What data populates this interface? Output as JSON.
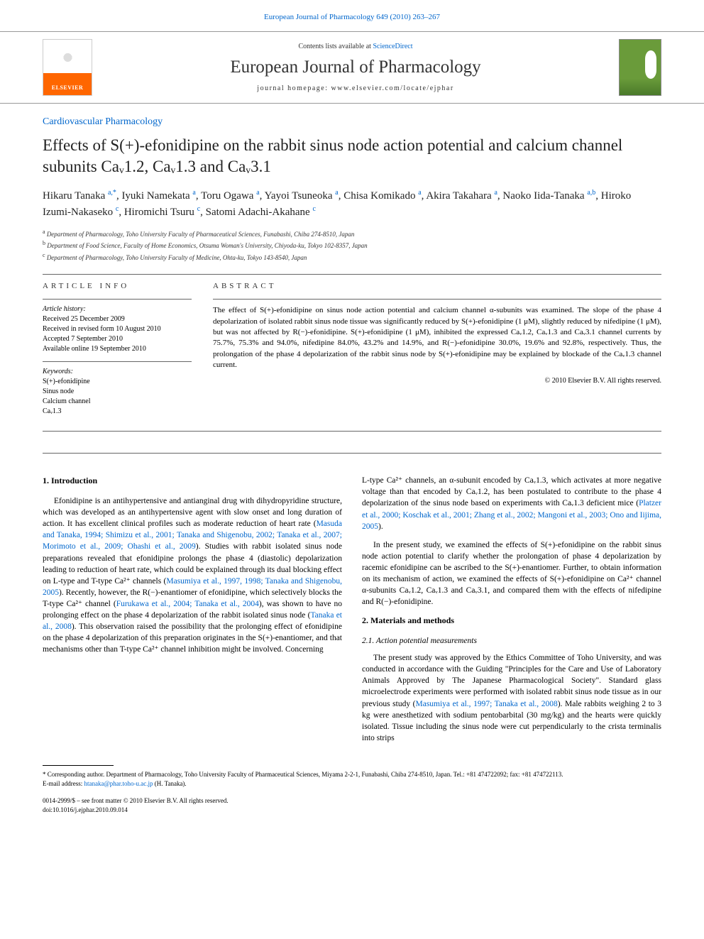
{
  "header": {
    "top_link": "European Journal of Pharmacology 649 (2010) 263–267",
    "contents_prefix": "Contents lists available at ",
    "contents_link": "ScienceDirect",
    "journal_name": "European Journal of Pharmacology",
    "homepage_prefix": "journal homepage: ",
    "homepage_url": "www.elsevier.com/locate/ejphar",
    "elsevier_label": "ELSEVIER"
  },
  "article": {
    "section_label": "Cardiovascular Pharmacology",
    "title": "Effects of S(+)-efonidipine on the rabbit sinus node action potential and calcium channel subunits Caᵥ1.2, Caᵥ1.3 and Caᵥ3.1",
    "authors_html": "Hikaru Tanaka <sup>a,*</sup>, Iyuki Namekata <sup>a</sup>, Toru Ogawa <sup>a</sup>, Yayoi Tsuneoka <sup>a</sup>, Chisa Komikado <sup>a</sup>, Akira Takahara <sup>a</sup>, Naoko Iida-Tanaka <sup>a,b</sup>, Hiroko Izumi-Nakaseko <sup>c</sup>, Hiromichi Tsuru <sup>c</sup>, Satomi Adachi-Akahane <sup>c</sup>",
    "affiliations": [
      "Department of Pharmacology, Toho University Faculty of Pharmaceutical Sciences, Funabashi, Chiba 274-8510, Japan",
      "Department of Food Science, Faculty of Home Economics, Otsuma Woman's University, Chiyoda-ku, Tokyo 102-8357, Japan",
      "Department of Pharmacology, Toho University Faculty of Medicine, Ohta-ku, Tokyo 143-8540, Japan"
    ],
    "aff_markers": [
      "a",
      "b",
      "c"
    ]
  },
  "info": {
    "heading": "ARTICLE INFO",
    "history_label": "Article history:",
    "history": [
      "Received 25 December 2009",
      "Received in revised form 10 August 2010",
      "Accepted 7 September 2010",
      "Available online 19 September 2010"
    ],
    "keywords_label": "Keywords:",
    "keywords": [
      "S(+)-efonidipine",
      "Sinus node",
      "Calcium channel",
      "Caᵥ1.3"
    ]
  },
  "abstract": {
    "heading": "ABSTRACT",
    "text": "The effect of S(+)-efonidipine on sinus node action potential and calcium channel α-subunits was examined. The slope of the phase 4 depolarization of isolated rabbit sinus node tissue was significantly reduced by S(+)-efonidipine (1 μM), slightly reduced by nifedipine (1 μM), but was not affected by R(−)-efonidipine. S(+)-efonidipine (1 μM), inhibited the expressed Caᵥ1.2, Caᵥ1.3 and Caᵥ3.1 channel currents by 75.7%, 75.3% and 94.0%, nifedipine 84.0%, 43.2% and 14.9%, and R(−)-efonidipine 30.0%, 19.6% and 92.8%, respectively. Thus, the prolongation of the phase 4 depolarization of the rabbit sinus node by S(+)-efonidipine may be explained by blockade of the Caᵥ1.3 channel current.",
    "copyright": "© 2010 Elsevier B.V. All rights reserved."
  },
  "body": {
    "intro_heading": "1. Introduction",
    "intro_p1_a": "Efonidipine is an antihypertensive and antianginal drug with dihydropyridine structure, which was developed as an antihypertensive agent with slow onset and long duration of action. It has excellent clinical profiles such as moderate reduction of heart rate (",
    "intro_p1_ref1": "Masuda and Tanaka, 1994; Shimizu et al., 2001; Tanaka and Shigenobu, 2002; Tanaka et al., 2007; Morimoto et al., 2009; Ohashi et al., 2009",
    "intro_p1_b": "). Studies with rabbit isolated sinus node preparations revealed that efonidipine prolongs the phase 4 (diastolic) depolarization leading to reduction of heart rate, which could be explained through its dual blocking effect on L-type and T-type Ca²⁺ channels (",
    "intro_p1_ref2": "Masumiya et al., 1997, 1998; Tanaka and Shigenobu, 2005",
    "intro_p1_c": "). Recently, however, the R(−)-enantiomer of efonidipine, which selectively blocks the T-type Ca²⁺ channel (",
    "intro_p1_ref3": "Furukawa et al., 2004; Tanaka et al., 2004",
    "intro_p1_d": "), was shown to have no prolonging effect on the phase 4 depolarization of the rabbit isolated sinus node (",
    "intro_p1_ref4": "Tanaka et al., 2008",
    "intro_p1_e": "). This observation raised the possibility that the prolonging effect of efonidipine on the phase 4 depolarization of this preparation originates in the S(+)-enantiomer, and that mechanisms other than T-type Ca²⁺ channel inhibition might be involved. Concerning",
    "col2_p1_a": "L-type Ca²⁺ channels, an α-subunit encoded by Caᵥ1.3, which activates at more negative voltage than that encoded by Caᵥ1.2, has been postulated to contribute to the phase 4 depolarization of the sinus node based on experiments with Caᵥ1.3 deficient mice (",
    "col2_p1_ref": "Platzer et al., 2000; Koschak et al., 2001; Zhang et al., 2002; Mangoni et al., 2003; Ono and Iijima, 2005",
    "col2_p1_b": ").",
    "col2_p2": "In the present study, we examined the effects of S(+)-efonidipine on the rabbit sinus node action potential to clarify whether the prolongation of phase 4 depolarization by racemic efonidipine can be ascribed to the S(+)-enantiomer. Further, to obtain information on its mechanism of action, we examined the effects of S(+)-efonidipine on Ca²⁺ channel α-subunits Caᵥ1.2, Caᵥ1.3 and Caᵥ3.1, and compared them with the effects of nifedipine and R(−)-efonidipine.",
    "methods_heading": "2. Materials and methods",
    "methods_sub": "2.1. Action potential measurements",
    "methods_p1_a": "The present study was approved by the Ethics Committee of Toho University, and was conducted in accordance with the Guiding \"Principles for the Care and Use of Laboratory Animals Approved by The Japanese Pharmacological Society\". Standard glass microelectrode experiments were performed with isolated rabbit sinus node tissue as in our previous study (",
    "methods_p1_ref": "Masumiya et al., 1997; Tanaka et al., 2008",
    "methods_p1_b": "). Male rabbits weighing 2 to 3 kg were anesthetized with sodium pentobarbital (30 mg/kg) and the hearts were quickly isolated. Tissue including the sinus node were cut perpendicularly to the crista terminalis into strips"
  },
  "footer": {
    "corr_label": "* Corresponding author. Department of Pharmacology, Toho University Faculty of Pharmaceutical Sciences, Miyama 2-2-1, Funabashi, Chiba 274-8510, Japan. Tel.: +81 474722092; fax: +81 474722113.",
    "email_label": "E-mail address: ",
    "email": "htanaka@phar.toho-u.ac.jp",
    "email_suffix": " (H. Tanaka).",
    "issn": "0014-2999/$ – see front matter © 2010 Elsevier B.V. All rights reserved.",
    "doi": "doi:10.1016/j.ejphar.2010.09.014"
  },
  "colors": {
    "link": "#0066cc",
    "text": "#000000",
    "elsevier_orange": "#ff6600",
    "cover_green": "#6a9b3a"
  }
}
